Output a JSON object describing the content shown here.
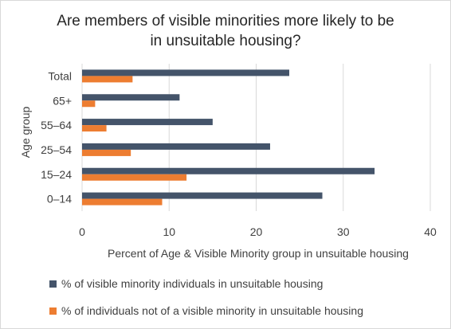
{
  "chart_data": {
    "type": "bar",
    "orientation": "horizontal",
    "title_lines": [
      "Are members of visible minorities more likely to be",
      "in unsuitable housing?"
    ],
    "ylabel": "Age group",
    "xlabel": "Percent of Age & Visible Minority group in unsuitable housing",
    "categories": [
      "Total",
      "65+",
      "55–64",
      "25–54",
      "15–24",
      "0–14"
    ],
    "series": [
      {
        "name": "% of visible minority individuals in unsuitable housing",
        "color": "#44546a",
        "values": [
          23.8,
          11.2,
          15.0,
          21.6,
          33.6,
          27.6
        ]
      },
      {
        "name": "% of individuals not of a visible minority in unsuitable housing",
        "color": "#ed7d31",
        "values": [
          5.8,
          1.5,
          2.8,
          5.6,
          12.0,
          9.2
        ]
      }
    ],
    "xlim": [
      0,
      40
    ],
    "xticks": [
      0,
      10,
      20,
      30,
      40
    ],
    "grid": true,
    "legend_position": "bottom"
  }
}
